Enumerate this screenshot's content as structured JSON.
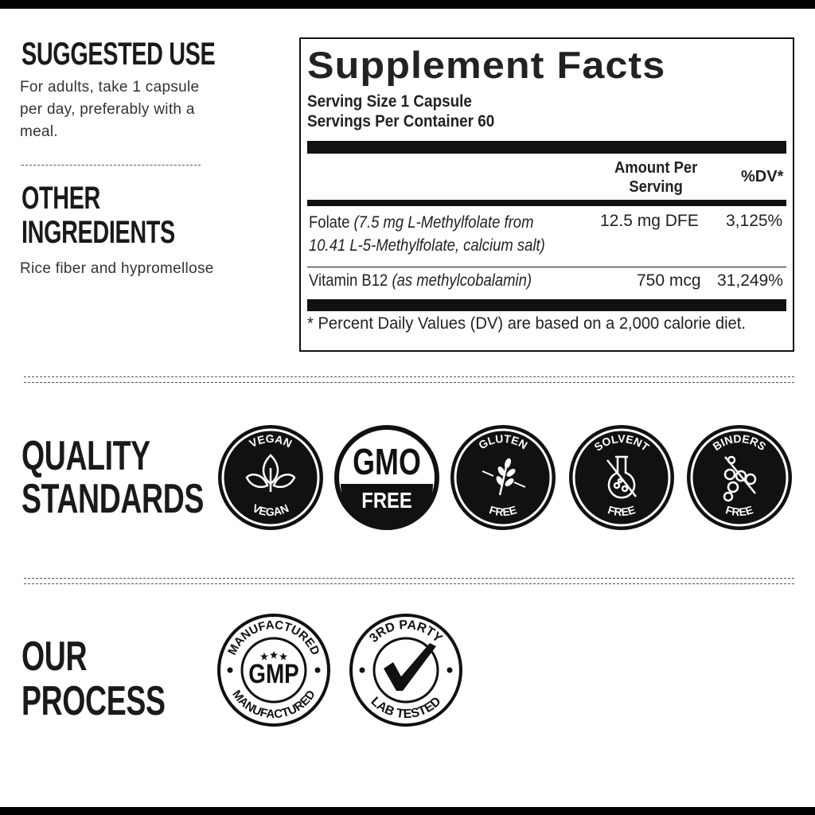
{
  "suggested_use": {
    "heading": "SUGGESTED USE",
    "lines": [
      "For adults, take 1 capsule",
      "per day, preferably with a",
      "meal."
    ]
  },
  "other_ingredients": {
    "heading_lines": [
      "OTHER",
      "INGREDIENTS"
    ],
    "text": "Rice fiber and hypromellose"
  },
  "supplement_facts": {
    "title": "Supplement Facts",
    "serving_size": "Serving Size 1 Capsule",
    "servings_per_container": "Servings Per Container 60",
    "col_amount": [
      "Amount Per",
      "Serving"
    ],
    "col_dv": "%DV*",
    "rows": [
      {
        "name": "Folate",
        "detail": [
          "(7.5 mg L-Methylfolate from",
          "10.41 L-5-Methylfolate, calcium salt)"
        ],
        "amount": "12.5 mg DFE",
        "dv": "3,125%"
      },
      {
        "name": "Vitamin B12",
        "detail": [
          "(as methylcobalamin)"
        ],
        "amount": "750 mcg",
        "dv": "31,249%"
      }
    ],
    "footnote": "* Percent Daily Values (DV) are based on a 2,000 calorie diet."
  },
  "quality": {
    "heading_lines": [
      "QUALITY",
      "STANDARDS"
    ],
    "badges": [
      {
        "top": "VEGAN",
        "bottom": "VEGAN",
        "icon": "leaf-icon"
      },
      {
        "top": "GMO",
        "bottom": "FREE",
        "icon": "none"
      },
      {
        "top": "GLUTEN",
        "bottom": "FREE",
        "icon": "wheat-icon"
      },
      {
        "top": "SOLVENT",
        "bottom": "FREE",
        "icon": "flask-icon"
      },
      {
        "top": "BINDERS",
        "bottom": "FREE",
        "icon": "molecule-icon"
      }
    ]
  },
  "process": {
    "heading_lines": [
      "OUR",
      "PROCESS"
    ],
    "badges": [
      {
        "top": "MANUFACTURED",
        "center": "GMP",
        "bottom": "MANUFACTURED",
        "icon": "stars-icon"
      },
      {
        "top": "3RD PARTY",
        "bottom": "LAB TESTED",
        "icon": "checkmark-icon"
      }
    ]
  },
  "colors": {
    "ink": "#111111",
    "background": "#ffffff"
  }
}
